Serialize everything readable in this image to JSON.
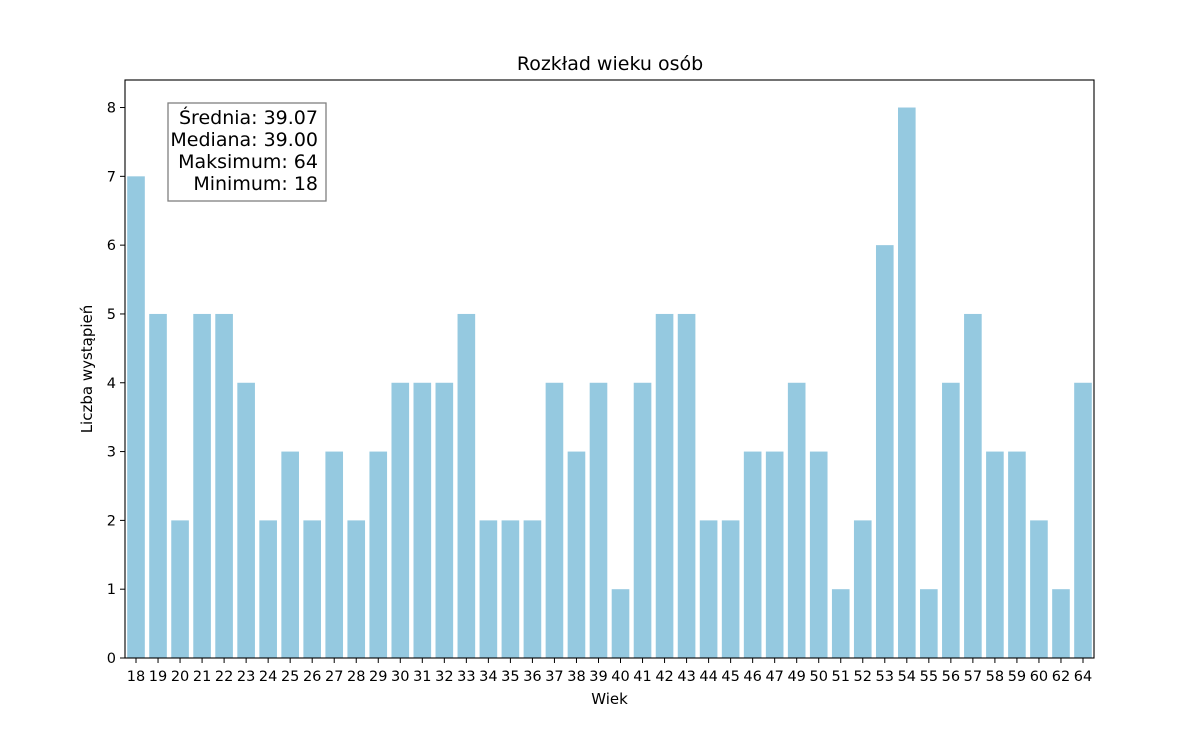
{
  "chart_data": {
    "type": "bar",
    "title": "Rozkład wieku osób",
    "xlabel": "Wiek",
    "ylabel": "Liczba wystąpień",
    "ylim": [
      0,
      8.4
    ],
    "yticks": [
      "0",
      "1",
      "2",
      "3",
      "4",
      "5",
      "6",
      "7",
      "8"
    ],
    "grid": false,
    "categories": [
      "18",
      "19",
      "20",
      "21",
      "22",
      "23",
      "24",
      "25",
      "26",
      "27",
      "28",
      "29",
      "30",
      "31",
      "32",
      "33",
      "34",
      "35",
      "36",
      "37",
      "38",
      "39",
      "40",
      "41",
      "42",
      "43",
      "44",
      "45",
      "46",
      "47",
      "49",
      "50",
      "51",
      "52",
      "53",
      "54",
      "55",
      "56",
      "57",
      "58",
      "59",
      "60",
      "62",
      "64"
    ],
    "values": [
      7,
      5,
      2,
      5,
      5,
      4,
      2,
      3,
      2,
      3,
      2,
      3,
      4,
      4,
      4,
      5,
      2,
      2,
      2,
      4,
      3,
      4,
      1,
      4,
      5,
      5,
      2,
      2,
      3,
      3,
      4,
      3,
      1,
      2,
      6,
      8,
      1,
      4,
      5,
      3,
      3,
      2,
      1,
      4
    ],
    "bar_color": "#95c9e0",
    "stats_box": {
      "lines": [
        "Średnia: 39.07",
        "Mediana: 39.00",
        "Maksimum: 64",
        "Minimum: 18"
      ],
      "placement": "top-left"
    }
  }
}
